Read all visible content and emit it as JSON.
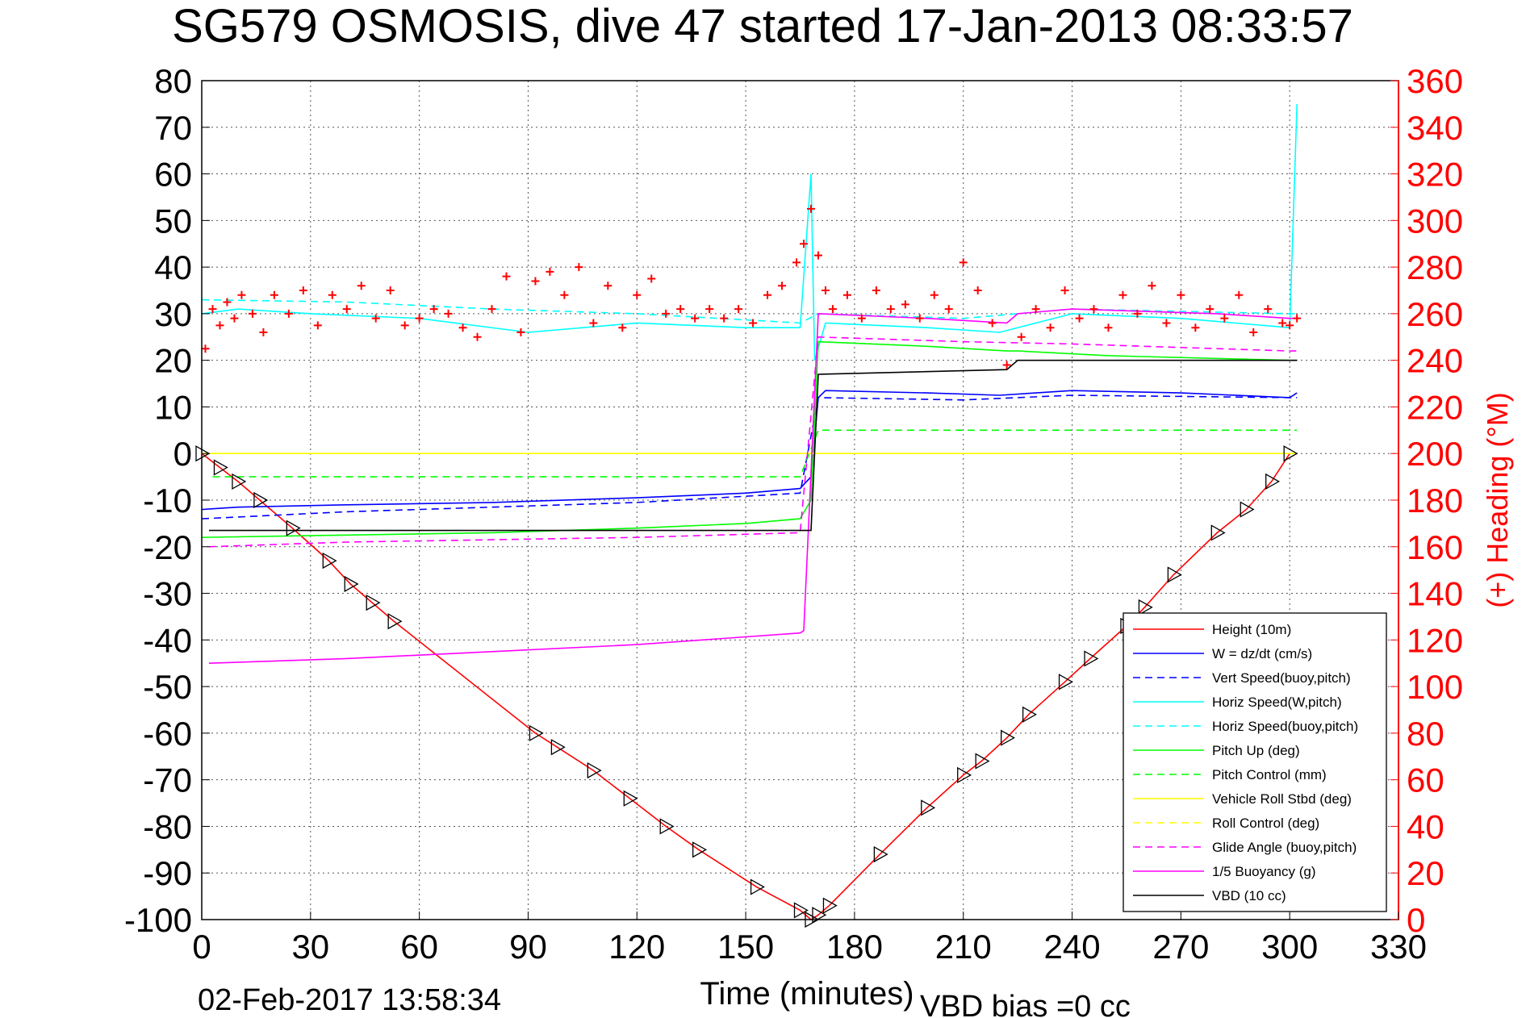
{
  "title": "SG579 OSMOSIS, dive 47 started 17-Jan-2013 08:33:57",
  "footer_date": "02-Feb-2017 13:58:34",
  "footer_note": "VBD bias =0 cc",
  "chart_data": {
    "type": "line",
    "xlabel": "Time (minutes)",
    "ylabel": "",
    "ylabel_right": "(+) Heading (°M)",
    "xlim": [
      0,
      330
    ],
    "ylim": [
      -100,
      80
    ],
    "ylim_right": [
      0,
      360
    ],
    "x_ticks": [
      "0",
      "30",
      "60",
      "90",
      "120",
      "150",
      "180",
      "210",
      "240",
      "270",
      "300",
      "330"
    ],
    "y_ticks": [
      "80",
      "70",
      "60",
      "50",
      "40",
      "30",
      "20",
      "10",
      "0",
      "-10",
      "-20",
      "-30",
      "-40",
      "-50",
      "-60",
      "-70",
      "-80",
      "-90",
      "-100"
    ],
    "y_ticks_right": [
      "360",
      "340",
      "320",
      "300",
      "280",
      "260",
      "240",
      "220",
      "200",
      "180",
      "160",
      "140",
      "120",
      "100",
      "80",
      "60",
      "40",
      "20",
      "0"
    ],
    "grid": true,
    "legend_position": "bottom-right",
    "colors": {
      "height": "#ff0000",
      "w": "#0000ff",
      "horiz": "#00ffff",
      "pitch": "#00ff00",
      "roll": "#ffff00",
      "buoy": "#ff00ff",
      "vbd": "#000000",
      "heading": "#ff0000"
    },
    "series": [
      {
        "name": "Height (10m)",
        "style": "solid",
        "color": "#ff0000",
        "points": [
          [
            0,
            0
          ],
          [
            5,
            -3
          ],
          [
            10,
            -6
          ],
          [
            16,
            -10
          ],
          [
            25,
            -16
          ],
          [
            35,
            -23
          ],
          [
            41,
            -28
          ],
          [
            47,
            -32
          ],
          [
            53,
            -36
          ],
          [
            92,
            -60
          ],
          [
            98,
            -63
          ],
          [
            108,
            -68
          ],
          [
            118,
            -74
          ],
          [
            128,
            -80
          ],
          [
            137,
            -85
          ],
          [
            153,
            -93
          ],
          [
            165,
            -98
          ],
          [
            168,
            -100
          ],
          [
            170,
            -99
          ],
          [
            173,
            -97
          ],
          [
            187,
            -86
          ],
          [
            200,
            -76
          ],
          [
            210,
            -69
          ],
          [
            215,
            -66
          ],
          [
            222,
            -61
          ],
          [
            228,
            -56
          ],
          [
            238,
            -49
          ],
          [
            245,
            -44
          ],
          [
            255,
            -37
          ],
          [
            260,
            -33
          ],
          [
            268,
            -26
          ],
          [
            280,
            -17
          ],
          [
            288,
            -12
          ],
          [
            295,
            -6
          ],
          [
            300,
            0
          ]
        ]
      },
      {
        "name": "W = dz/dt (cm/s)",
        "style": "solid",
        "color": "#0000ff",
        "points": [
          [
            0,
            -12
          ],
          [
            10,
            -11.5
          ],
          [
            40,
            -11
          ],
          [
            80,
            -10.5
          ],
          [
            120,
            -9.5
          ],
          [
            150,
            -8.5
          ],
          [
            165,
            -7.5
          ],
          [
            168,
            -5
          ],
          [
            170,
            12
          ],
          [
            172,
            13.5
          ],
          [
            200,
            13
          ],
          [
            220,
            12.5
          ],
          [
            240,
            13.5
          ],
          [
            270,
            13
          ],
          [
            300,
            12
          ],
          [
            302,
            13
          ]
        ]
      },
      {
        "name": "Vert Speed(buoy,pitch)",
        "style": "dashed",
        "color": "#0000ff",
        "points": [
          [
            0,
            -14
          ],
          [
            40,
            -12.5
          ],
          [
            80,
            -11.5
          ],
          [
            120,
            -10.5
          ],
          [
            165,
            -8.5
          ],
          [
            170,
            12
          ],
          [
            210,
            11.5
          ],
          [
            240,
            12.5
          ],
          [
            300,
            12
          ],
          [
            302,
            12
          ]
        ]
      },
      {
        "name": "Horiz Speed(W,pitch)",
        "style": "solid",
        "color": "#00ffff",
        "points": [
          [
            0,
            30
          ],
          [
            10,
            31
          ],
          [
            30,
            30
          ],
          [
            60,
            29
          ],
          [
            90,
            26
          ],
          [
            120,
            28
          ],
          [
            150,
            27
          ],
          [
            165,
            27
          ],
          [
            168,
            60
          ],
          [
            169,
            20
          ],
          [
            172,
            28
          ],
          [
            200,
            27
          ],
          [
            220,
            26
          ],
          [
            240,
            30
          ],
          [
            270,
            29
          ],
          [
            300,
            27
          ],
          [
            302,
            75
          ]
        ]
      },
      {
        "name": "Horiz Speed(buoy,pitch)",
        "style": "dashed",
        "color": "#00ffff",
        "points": [
          [
            0,
            33
          ],
          [
            40,
            32.5
          ],
          [
            80,
            31
          ],
          [
            120,
            30
          ],
          [
            165,
            28
          ],
          [
            170,
            30
          ],
          [
            210,
            29
          ],
          [
            240,
            31
          ],
          [
            300,
            30
          ],
          [
            302,
            30
          ]
        ]
      },
      {
        "name": "Pitch Up (deg)",
        "style": "solid",
        "color": "#00ff00",
        "points": [
          [
            0,
            -18
          ],
          [
            40,
            -17.5
          ],
          [
            80,
            -17
          ],
          [
            120,
            -16
          ],
          [
            150,
            -15
          ],
          [
            165,
            -14
          ],
          [
            168,
            -10
          ],
          [
            170,
            24
          ],
          [
            200,
            23
          ],
          [
            222,
            22
          ],
          [
            225,
            22
          ],
          [
            250,
            21
          ],
          [
            300,
            20
          ],
          [
            302,
            20
          ]
        ]
      },
      {
        "name": "Pitch Control (mm)",
        "style": "dashed",
        "color": "#00ff00",
        "points": [
          [
            3,
            -5
          ],
          [
            165,
            -5
          ],
          [
            170,
            5
          ],
          [
            302,
            5
          ]
        ]
      },
      {
        "name": "Vehicle Roll Stbd (deg)",
        "style": "solid",
        "color": "#ffff00",
        "points": [
          [
            0,
            0
          ],
          [
            30,
            0
          ],
          [
            60,
            0
          ],
          [
            90,
            0
          ],
          [
            120,
            0
          ],
          [
            165,
            0
          ],
          [
            170,
            0
          ],
          [
            200,
            0
          ],
          [
            240,
            0
          ],
          [
            270,
            0
          ],
          [
            302,
            0
          ]
        ]
      },
      {
        "name": "Roll Control (deg)",
        "style": "dashed",
        "color": "#ffff00",
        "points": [
          [
            0,
            0
          ],
          [
            165,
            0
          ],
          [
            170,
            0
          ],
          [
            302,
            0
          ]
        ]
      },
      {
        "name": "Glide Angle (buoy,pitch)",
        "style": "dashed",
        "color": "#ff00ff",
        "points": [
          [
            2,
            -20
          ],
          [
            40,
            -19
          ],
          [
            80,
            -18.5
          ],
          [
            120,
            -18
          ],
          [
            165,
            -17
          ],
          [
            170,
            25
          ],
          [
            210,
            24
          ],
          [
            240,
            23.5
          ],
          [
            300,
            22
          ],
          [
            302,
            22
          ]
        ]
      },
      {
        "name": "1/5 Buoyancy (g)",
        "style": "solid",
        "color": "#ff00ff",
        "points": [
          [
            2,
            -45
          ],
          [
            40,
            -44
          ],
          [
            80,
            -42.5
          ],
          [
            120,
            -41
          ],
          [
            165,
            -38.5
          ],
          [
            166,
            -38
          ],
          [
            170,
            30
          ],
          [
            200,
            29
          ],
          [
            222,
            28
          ],
          [
            225,
            30
          ],
          [
            240,
            31
          ],
          [
            280,
            30
          ],
          [
            300,
            29
          ],
          [
            302,
            29
          ]
        ]
      },
      {
        "name": "VBD (10 cc)",
        "style": "solid",
        "color": "#000000",
        "points": [
          [
            2,
            -16.5
          ],
          [
            165,
            -16.5
          ],
          [
            168,
            -16.5
          ],
          [
            170,
            17
          ],
          [
            222,
            18
          ],
          [
            225,
            20
          ],
          [
            302,
            20
          ]
        ]
      }
    ],
    "heading_series": {
      "name": "(+) Heading (°M)",
      "color": "#ff0000",
      "marker": "+",
      "x": [
        1,
        3,
        5,
        7,
        9,
        11,
        14,
        17,
        20,
        24,
        28,
        32,
        36,
        40,
        44,
        48,
        52,
        56,
        60,
        64,
        68,
        72,
        76,
        80,
        84,
        88,
        92,
        96,
        100,
        104,
        108,
        112,
        116,
        120,
        124,
        128,
        132,
        136,
        140,
        144,
        148,
        152,
        156,
        160,
        164,
        166,
        168,
        170,
        172,
        174,
        178,
        182,
        186,
        190,
        194,
        198,
        202,
        206,
        210,
        214,
        218,
        222,
        226,
        230,
        234,
        238,
        242,
        246,
        250,
        254,
        258,
        262,
        266,
        270,
        274,
        278,
        282,
        286,
        290,
        294,
        298,
        300,
        302
      ],
      "y": [
        245,
        262,
        255,
        265,
        258,
        268,
        260,
        252,
        268,
        260,
        270,
        255,
        268,
        262,
        272,
        258,
        270,
        255,
        258,
        262,
        260,
        254,
        250,
        262,
        276,
        252,
        274,
        278,
        268,
        280,
        256,
        272,
        254,
        268,
        275,
        260,
        262,
        258,
        262,
        258,
        262,
        256,
        268,
        272,
        282,
        290,
        305,
        285,
        270,
        262,
        268,
        258,
        270,
        262,
        264,
        258,
        268,
        262,
        282,
        270,
        256,
        238,
        250,
        262,
        254,
        270,
        258,
        262,
        254,
        268,
        260,
        272,
        256,
        268,
        254,
        262,
        258,
        268,
        252,
        262,
        256,
        255,
        258
      ]
    },
    "triangle_markers": {
      "x": [
        0,
        5,
        10,
        16,
        25,
        35,
        41,
        47,
        53,
        92,
        98,
        108,
        118,
        128,
        137,
        153,
        165,
        168,
        170,
        173,
        187,
        200,
        210,
        215,
        222,
        228,
        238,
        245,
        255,
        260,
        268,
        280,
        288,
        295,
        300
      ],
      "y": [
        0,
        -3,
        -6,
        -10,
        -16,
        -23,
        -28,
        -32,
        -36,
        -60,
        -63,
        -68,
        -74,
        -80,
        -85,
        -93,
        -98,
        -100,
        -99,
        -97,
        -86,
        -76,
        -69,
        -66,
        -61,
        -56,
        -49,
        -44,
        -37,
        -33,
        -26,
        -17,
        -12,
        -6,
        0
      ]
    }
  }
}
